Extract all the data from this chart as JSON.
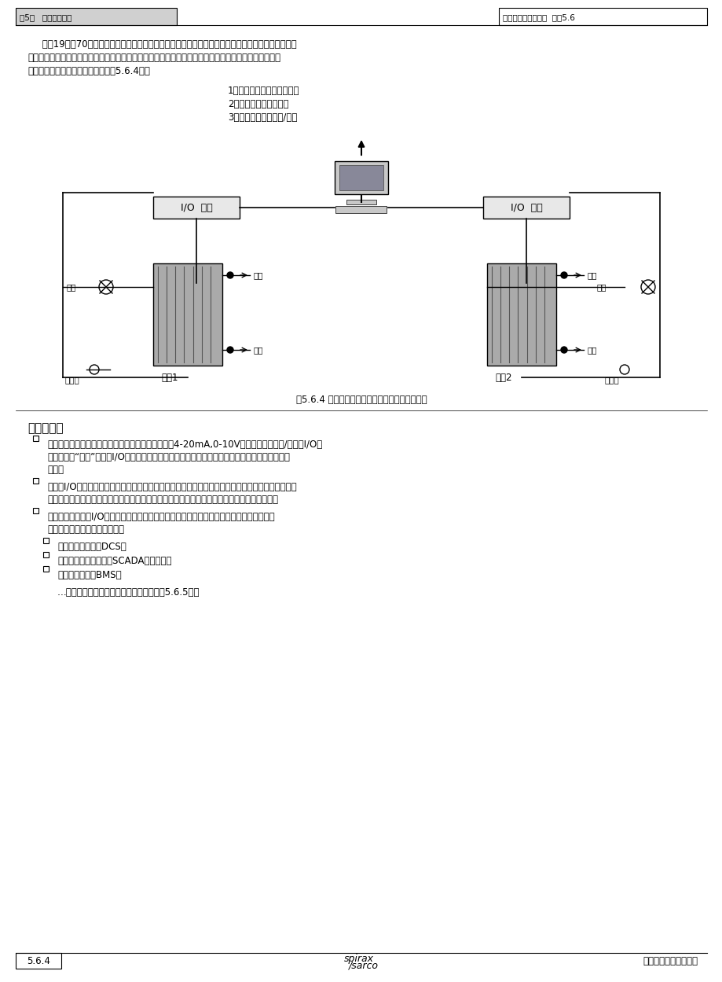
{
  "bg_color": "#ffffff",
  "header_left": "第5章   基础控制理论",
  "header_right": "控制系统中的计算机  章节5.6",
  "footer_left": "5.6.4",
  "footer_right": "蒸汽和冷凝水系统手册",
  "body_lines": [
    "     早在19世纪70年代中期，很多知名仪表公司开始开发数字控制系统市场。这些系统使用一个中央计算",
    "机处理单元，接受来自感应器的输入，进行数学程序计算，给不同的相关控制设备提供输出信号。它们也",
    "会有一个事件记录仪以便回顾（见图5.6.4）。"
  ],
  "list_items": [
    "1．搜集来自各个感应器信息",
    "2．至控制阀的信号输出",
    "3．数据记录仪和显示/打印"
  ],
  "figure_caption": "图5.6.4 一个中央计算机集中处理数据和控制设备",
  "section_header": "重要提示：",
  "bullet1_lines": [
    "一台个人计算机不能接受来自控制设备的原始信号（4-20mA,0-10V），需要一台输出/输入（I/O）",
    "设备来进行“翻译”。每个I/O的供货商都有一种独特的方法来实现，因此系统的兼容性没有想像中",
    "的好。"
  ],
  "bullet2_lines": [
    "最初，I/O设备在工厂的主控制室。每个单独的设备通过其各自独立的信号线连接到主控制室。这就意",
    "味在一个大型的工厂，线路的安装和管理是一件很重要的事情，包括其物理体积和相应的成本。"
  ],
  "bullet3_lines": [
    "随着技术的发展，I/O设备撤出了工厂，连向控制室的线路的数量减少了，但是依然很重要。",
    "数字控制系统带来的发展包括："
  ],
  "sub_bullets": [
    "分散式控制系统（DCS）",
    "控制监督和数据采集（SCADA）系统，和",
    "楼宇管理系统（BMS）"
  ],
  "last_line": "…所有这些在今天都已经被大量使用（见图5.6.5）。"
}
